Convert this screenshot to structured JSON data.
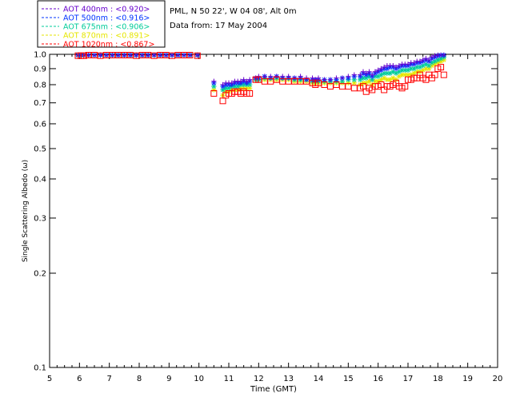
{
  "chart_data": {
    "type": "scatter",
    "title": "",
    "xlabel": "Time (GMT)",
    "ylabel": "Single Scattering Albedo (ω)",
    "xlim": [
      5,
      20
    ],
    "ylim": [
      0.1,
      1.0
    ],
    "yscale": "log",
    "x_ticks": [
      5,
      6,
      7,
      8,
      9,
      10,
      11,
      12,
      13,
      14,
      15,
      16,
      17,
      18,
      19,
      20
    ],
    "y_ticks": [
      0.1,
      0.2,
      0.3,
      0.4,
      0.5,
      0.6,
      0.7,
      0.8,
      0.9,
      1.0
    ],
    "y_tick_labels": [
      "0.1",
      "0.2",
      "0.3",
      "0.4",
      "0.5",
      "0.6",
      "0.7",
      "0.8",
      "0.9",
      "1.0"
    ],
    "grid": false,
    "legend_position": "top-left",
    "annotations": [
      "PML, N 50 22', W 04 08', Alt 0m",
      "Data from: 17 May 2004"
    ],
    "x": [
      5.95,
      6.05,
      6.15,
      6.3,
      6.5,
      6.7,
      6.9,
      7.1,
      7.3,
      7.5,
      7.7,
      7.9,
      8.1,
      8.3,
      8.5,
      8.7,
      8.9,
      9.1,
      9.3,
      9.5,
      9.7,
      9.95,
      10.5,
      10.8,
      10.9,
      11.0,
      11.1,
      11.2,
      11.3,
      11.4,
      11.5,
      11.6,
      11.7,
      11.9,
      12.0,
      12.2,
      12.4,
      12.6,
      12.8,
      13.0,
      13.2,
      13.4,
      13.6,
      13.8,
      13.9,
      14.0,
      14.2,
      14.4,
      14.6,
      14.8,
      15.0,
      15.2,
      15.4,
      15.5,
      15.6,
      15.7,
      15.8,
      15.9,
      16.0,
      16.1,
      16.2,
      16.3,
      16.4,
      16.5,
      16.6,
      16.7,
      16.8,
      16.9,
      17.0,
      17.1,
      17.2,
      17.3,
      17.4,
      17.5,
      17.6,
      17.7,
      17.8,
      17.9,
      18.0,
      18.1,
      18.2
    ],
    "series": [
      {
        "name": "AOT 400nm : <0.920>",
        "color": "#6600cc",
        "marker": "plus",
        "values": [
          1.0,
          1.0,
          1.0,
          1.0,
          1.0,
          1.0,
          1.0,
          1.0,
          1.0,
          1.0,
          1.0,
          1.0,
          1.0,
          1.0,
          1.0,
          1.0,
          1.0,
          1.0,
          1.0,
          1.0,
          1.0,
          1.0,
          0.82,
          0.8,
          0.81,
          0.81,
          0.81,
          0.82,
          0.82,
          0.82,
          0.83,
          0.82,
          0.83,
          0.84,
          0.85,
          0.85,
          0.85,
          0.85,
          0.85,
          0.85,
          0.84,
          0.85,
          0.84,
          0.84,
          0.83,
          0.84,
          0.83,
          0.83,
          0.84,
          0.84,
          0.85,
          0.86,
          0.86,
          0.88,
          0.87,
          0.88,
          0.86,
          0.88,
          0.89,
          0.9,
          0.91,
          0.92,
          0.92,
          0.92,
          0.91,
          0.92,
          0.93,
          0.93,
          0.93,
          0.94,
          0.94,
          0.95,
          0.95,
          0.96,
          0.97,
          0.96,
          0.98,
          0.99,
          1.0,
          1.01,
          1.02
        ]
      },
      {
        "name": "AOT 500nm : <0.916>",
        "color": "#0033ff",
        "marker": "star",
        "values": [
          1.0,
          1.0,
          1.0,
          1.0,
          1.0,
          1.0,
          1.0,
          1.0,
          1.0,
          1.0,
          1.0,
          1.0,
          1.0,
          1.0,
          1.0,
          1.0,
          1.0,
          1.0,
          1.0,
          1.0,
          1.0,
          1.0,
          0.81,
          0.79,
          0.8,
          0.8,
          0.8,
          0.81,
          0.81,
          0.81,
          0.82,
          0.81,
          0.82,
          0.84,
          0.84,
          0.85,
          0.84,
          0.85,
          0.84,
          0.84,
          0.84,
          0.84,
          0.83,
          0.83,
          0.83,
          0.83,
          0.83,
          0.83,
          0.83,
          0.84,
          0.84,
          0.85,
          0.85,
          0.87,
          0.86,
          0.87,
          0.85,
          0.87,
          0.88,
          0.89,
          0.9,
          0.9,
          0.91,
          0.91,
          0.9,
          0.91,
          0.92,
          0.92,
          0.92,
          0.93,
          0.93,
          0.94,
          0.94,
          0.95,
          0.96,
          0.95,
          0.97,
          0.98,
          0.99,
          1.0,
          1.01
        ]
      },
      {
        "name": "AOT 675nm : <0.906>",
        "color": "#00cc99",
        "marker": "star",
        "values": [
          1.0,
          1.0,
          1.0,
          1.0,
          1.0,
          1.0,
          1.0,
          1.0,
          1.0,
          1.0,
          1.0,
          1.0,
          1.0,
          1.0,
          1.0,
          1.0,
          1.0,
          1.0,
          1.0,
          1.0,
          1.0,
          1.0,
          0.79,
          0.77,
          0.78,
          0.78,
          0.79,
          0.79,
          0.79,
          0.8,
          0.8,
          0.8,
          0.8,
          0.83,
          0.83,
          0.84,
          0.84,
          0.84,
          0.84,
          0.84,
          0.83,
          0.83,
          0.83,
          0.82,
          0.82,
          0.82,
          0.82,
          0.82,
          0.82,
          0.82,
          0.83,
          0.83,
          0.83,
          0.84,
          0.84,
          0.85,
          0.83,
          0.85,
          0.85,
          0.86,
          0.87,
          0.87,
          0.87,
          0.88,
          0.87,
          0.88,
          0.89,
          0.89,
          0.89,
          0.9,
          0.9,
          0.91,
          0.91,
          0.92,
          0.93,
          0.92,
          0.94,
          0.95,
          0.96,
          0.97,
          0.98
        ]
      },
      {
        "name": "AOT 870nm : <0.891>",
        "color": "#e6e600",
        "marker": "star",
        "values": [
          1.0,
          1.0,
          1.0,
          1.0,
          1.0,
          1.0,
          1.0,
          1.0,
          1.0,
          1.0,
          1.0,
          1.0,
          1.0,
          1.0,
          1.0,
          1.0,
          1.0,
          1.0,
          1.0,
          1.0,
          1.0,
          1.0,
          0.77,
          0.74,
          0.76,
          0.76,
          0.77,
          0.77,
          0.77,
          0.78,
          0.78,
          0.78,
          0.78,
          0.83,
          0.83,
          0.83,
          0.83,
          0.83,
          0.83,
          0.83,
          0.82,
          0.82,
          0.82,
          0.81,
          0.81,
          0.81,
          0.81,
          0.81,
          0.81,
          0.81,
          0.81,
          0.81,
          0.8,
          0.81,
          0.81,
          0.82,
          0.8,
          0.82,
          0.82,
          0.83,
          0.84,
          0.83,
          0.83,
          0.84,
          0.83,
          0.85,
          0.86,
          0.86,
          0.86,
          0.86,
          0.87,
          0.88,
          0.88,
          0.89,
          0.9,
          0.9,
          0.92,
          0.93,
          0.94,
          0.95,
          0.96
        ]
      },
      {
        "name": "AOT 1020nm : <0.867>",
        "color": "#ff0000",
        "marker": "square",
        "values": [
          0.99,
          0.99,
          0.99,
          1.0,
          1.0,
          0.99,
          1.0,
          1.0,
          1.0,
          1.0,
          1.0,
          0.99,
          1.0,
          1.0,
          0.99,
          1.0,
          1.0,
          0.99,
          1.0,
          1.0,
          1.0,
          0.99,
          0.75,
          0.71,
          0.74,
          0.75,
          0.75,
          0.76,
          0.76,
          0.75,
          0.76,
          0.75,
          0.75,
          0.83,
          0.83,
          0.82,
          0.82,
          0.83,
          0.82,
          0.82,
          0.82,
          0.82,
          0.82,
          0.81,
          0.8,
          0.81,
          0.8,
          0.79,
          0.8,
          0.79,
          0.79,
          0.78,
          0.78,
          0.79,
          0.76,
          0.78,
          0.77,
          0.79,
          0.79,
          0.8,
          0.77,
          0.79,
          0.79,
          0.8,
          0.81,
          0.79,
          0.78,
          0.79,
          0.83,
          0.83,
          0.84,
          0.84,
          0.86,
          0.84,
          0.83,
          0.86,
          0.84,
          0.86,
          0.9,
          0.91,
          0.86
        ]
      }
    ]
  }
}
